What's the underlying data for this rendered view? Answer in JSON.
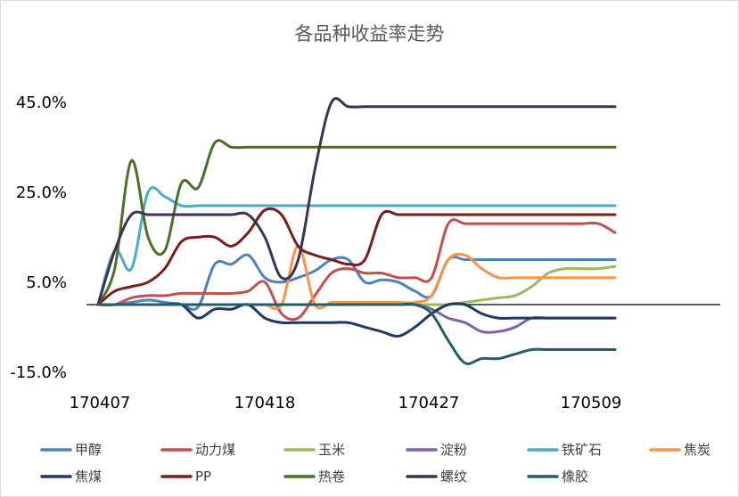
{
  "chart_data": {
    "type": "line",
    "title": "各品种收益率走势",
    "xlabel": "",
    "ylabel": "",
    "x_ticks": [
      "170407",
      "170418",
      "170427",
      "170509"
    ],
    "y_ticks": [
      "45.0%",
      "25.0%",
      "5.0%",
      "-15.0%"
    ],
    "y_tick_values": [
      45,
      25,
      5,
      -15
    ],
    "ylim": [
      -15,
      50
    ],
    "grid": false,
    "legend_position": "bottom",
    "n_points": 32,
    "series": [
      {
        "name": "甲醇",
        "color": "#4f81bd",
        "values": [
          0,
          0,
          0.5,
          1,
          0.5,
          0,
          -0.5,
          9,
          9,
          11,
          6,
          5,
          6,
          7.5,
          10,
          10,
          5,
          5.5,
          5,
          3,
          2,
          10,
          10,
          10,
          10,
          10,
          10,
          10,
          10,
          10,
          10,
          10
        ]
      },
      {
        "name": "动力煤",
        "color": "#c0504d",
        "values": [
          0,
          0,
          1.5,
          2,
          2,
          2.5,
          2.5,
          2.5,
          2.5,
          3,
          5,
          -2,
          -3,
          2,
          7,
          8,
          7,
          7,
          6,
          6,
          6,
          18,
          18,
          18,
          18,
          18,
          18,
          18,
          18,
          18,
          18,
          16
        ]
      },
      {
        "name": "玉米",
        "color": "#9bbb59",
        "values": [
          0,
          0,
          0,
          0,
          0,
          0,
          0,
          0,
          0,
          0,
          0,
          0,
          0,
          0,
          0,
          0,
          0,
          0,
          0,
          0,
          0,
          0,
          0.5,
          1,
          1.5,
          2,
          4,
          7,
          8,
          8,
          8,
          8.5
        ]
      },
      {
        "name": "淀粉",
        "color": "#8064a2",
        "values": [
          0,
          0,
          0,
          0,
          0,
          0,
          0,
          0,
          0,
          0,
          0,
          0,
          0,
          0,
          0,
          0,
          0,
          0,
          0,
          0,
          -1,
          -3,
          -4,
          -6,
          -6,
          -5,
          -3,
          -3,
          -3,
          -3,
          -3,
          -3
        ]
      },
      {
        "name": "铁矿石",
        "color": "#4bacc6",
        "values": [
          0,
          12,
          8,
          25,
          24,
          22,
          22,
          22,
          22,
          22,
          22,
          22,
          22,
          22,
          22,
          22,
          22,
          22,
          22,
          22,
          22,
          22,
          22,
          22,
          22,
          22,
          22,
          22,
          22,
          22,
          22,
          22
        ]
      },
      {
        "name": "焦炭",
        "color": "#f79646",
        "values": [
          0,
          0,
          0,
          0,
          0,
          0,
          0,
          0,
          0,
          0,
          0,
          0,
          13,
          0,
          0.5,
          0.5,
          0.5,
          0.5,
          0.5,
          0.5,
          2,
          10,
          11,
          8,
          6,
          6,
          6,
          6,
          6,
          6,
          6,
          6
        ]
      },
      {
        "name": "焦煤",
        "color": "#1f3864",
        "values": [
          0,
          0,
          0,
          0,
          0,
          0,
          -3,
          -1,
          -1,
          0,
          -3,
          -4,
          -4,
          -4,
          -4,
          -4,
          -5,
          -6,
          -7,
          -5,
          -2,
          0,
          0,
          -2,
          -3,
          -3,
          -3,
          -3,
          -3,
          -3,
          -3,
          -3
        ]
      },
      {
        "name": "PP",
        "color": "#7b1c1c",
        "values": [
          0,
          3,
          4,
          5,
          8,
          14,
          15,
          15,
          13,
          16,
          21,
          20,
          13,
          11,
          10,
          9,
          10,
          20,
          20,
          20,
          20,
          20,
          20,
          20,
          20,
          20,
          20,
          20,
          20,
          20,
          20,
          20
        ]
      },
      {
        "name": "热卷",
        "color": "#4e6e28",
        "values": [
          0,
          8,
          32,
          15,
          12,
          27,
          26,
          36,
          35,
          35,
          35,
          35,
          35,
          35,
          35,
          35,
          35,
          35,
          35,
          35,
          35,
          35,
          35,
          35,
          35,
          35,
          35,
          35,
          35,
          35,
          35,
          35
        ]
      },
      {
        "name": "螺纹",
        "color": "#403152",
        "values": [
          0,
          12,
          20,
          20,
          20,
          20,
          20,
          20,
          20,
          20,
          15,
          6,
          10,
          30,
          45,
          44,
          44,
          44,
          44,
          44,
          44,
          44,
          44,
          44,
          44,
          44,
          44,
          44,
          44,
          44,
          44,
          44
        ]
      },
      {
        "name": "橡胶",
        "color": "#215f6b",
        "values": [
          0,
          0,
          0,
          0,
          0,
          0,
          0,
          0,
          0,
          0,
          0,
          0,
          0,
          0,
          0,
          0,
          0,
          0,
          0,
          0,
          -2,
          -8,
          -13,
          -12,
          -12,
          -11,
          -10,
          -10,
          -10,
          -10,
          -10,
          -10
        ]
      }
    ]
  }
}
